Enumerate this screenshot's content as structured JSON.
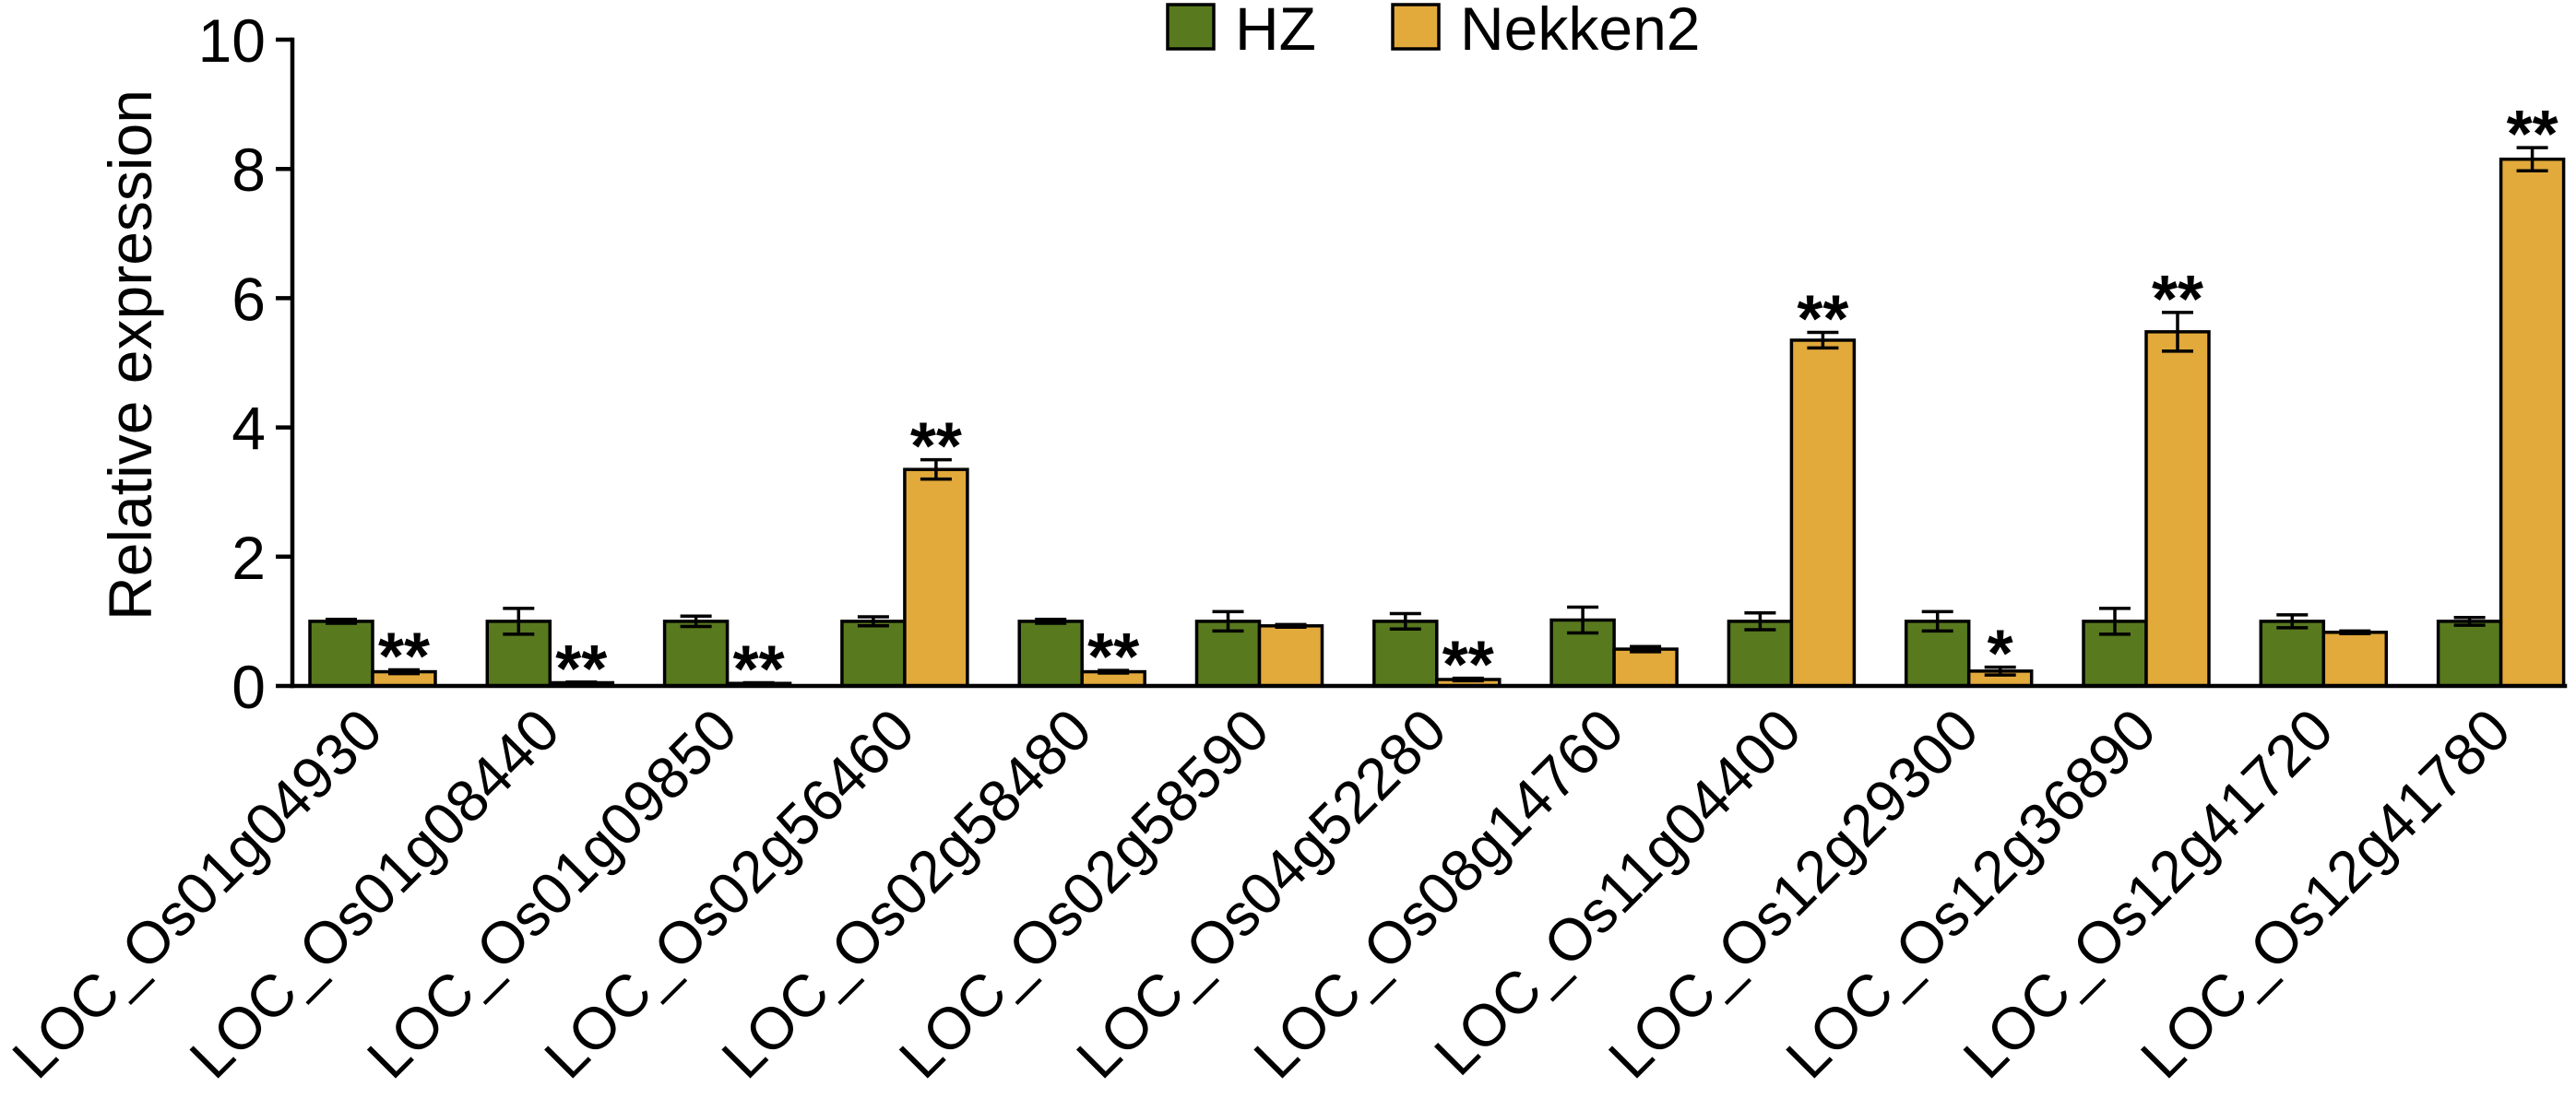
{
  "chart_data": {
    "type": "bar",
    "ylabel": "Relative expression",
    "ylim": [
      0,
      10
    ],
    "yticks": [
      0,
      2,
      4,
      6,
      8,
      10
    ],
    "grid": false,
    "legend_position": "top-center",
    "categories": [
      "LOC_Os01g04930",
      "LOC_Os01g08440",
      "LOC_Os01g09850",
      "LOC_Os02g56460",
      "LOC_Os02g58480",
      "LOC_Os02g58590",
      "LOC_Os04g52280",
      "LOC_Os08g14760",
      "LOC_Os11g04400",
      "LOC_Os12g29300",
      "LOC_Os12g36890",
      "LOC_Os12g41720",
      "LOC_Os12g41780"
    ],
    "series": [
      {
        "name": "HZ",
        "color": "#58791e",
        "values": [
          1.0,
          1.0,
          1.0,
          1.0,
          1.0,
          1.0,
          1.0,
          1.02,
          1.0,
          1.0,
          1.0,
          1.0,
          1.0
        ],
        "errors": [
          0.03,
          0.2,
          0.08,
          0.07,
          0.03,
          0.15,
          0.12,
          0.2,
          0.13,
          0.15,
          0.2,
          0.1,
          0.06
        ]
      },
      {
        "name": "Nekken2",
        "color": "#e2a93b",
        "values": [
          0.22,
          0.05,
          0.04,
          3.35,
          0.22,
          0.93,
          0.1,
          0.57,
          5.35,
          0.23,
          5.48,
          0.83,
          8.15
        ],
        "errors": [
          0.03,
          0.01,
          0.01,
          0.15,
          0.02,
          0.02,
          0.02,
          0.04,
          0.12,
          0.06,
          0.3,
          0.02,
          0.18
        ],
        "significance": [
          "**",
          "**",
          "**",
          "**",
          "**",
          "",
          "**",
          "",
          "**",
          "*",
          "**",
          "",
          "**"
        ]
      }
    ]
  }
}
